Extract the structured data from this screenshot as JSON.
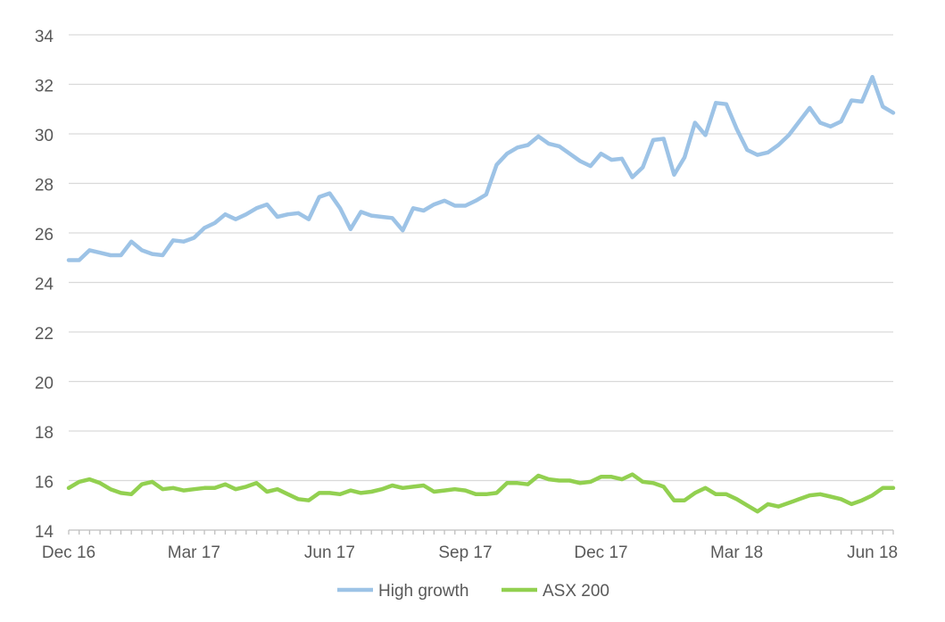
{
  "chart_data": {
    "type": "line",
    "title": "",
    "xlabel": "",
    "ylabel": "",
    "ylim": [
      14,
      34
    ],
    "y_ticks": [
      14,
      16,
      18,
      20,
      22,
      24,
      26,
      28,
      30,
      32,
      34
    ],
    "x_tick_labels": [
      "Dec 16",
      "Mar 17",
      "Jun 17",
      "Sep 17",
      "Dec 17",
      "Mar 18",
      "Jun 18"
    ],
    "x_tick_indices": [
      0,
      12,
      25,
      38,
      51,
      64,
      77
    ],
    "grid": "horizontal",
    "legend_position": "bottom-center",
    "series": [
      {
        "name": "High growth",
        "color": "#9DC3E6",
        "values": [
          24.9,
          24.9,
          25.3,
          25.2,
          25.1,
          25.1,
          25.65,
          25.3,
          25.15,
          25.1,
          25.7,
          25.65,
          25.8,
          26.2,
          26.4,
          26.75,
          26.55,
          26.75,
          27.0,
          27.15,
          26.65,
          26.75,
          26.8,
          26.55,
          27.45,
          27.6,
          27.0,
          26.15,
          26.85,
          26.7,
          26.65,
          26.6,
          26.1,
          27.0,
          26.9,
          27.15,
          27.3,
          27.1,
          27.1,
          27.3,
          27.55,
          28.75,
          29.2,
          29.45,
          29.55,
          29.9,
          29.6,
          29.5,
          29.2,
          28.9,
          28.7,
          29.2,
          28.95,
          29.0,
          28.25,
          28.65,
          29.75,
          29.8,
          28.35,
          29.05,
          30.45,
          29.95,
          31.25,
          31.2,
          30.2,
          29.35,
          29.15,
          29.25,
          29.55,
          29.95,
          30.5,
          31.05,
          30.45,
          30.3,
          30.5,
          31.35,
          31.3,
          32.3,
          31.1,
          30.85
        ]
      },
      {
        "name": "ASX 200",
        "color": "#92D050",
        "values": [
          15.7,
          15.95,
          16.05,
          15.9,
          15.65,
          15.5,
          15.45,
          15.85,
          15.95,
          15.65,
          15.7,
          15.6,
          15.65,
          15.7,
          15.7,
          15.85,
          15.65,
          15.75,
          15.9,
          15.55,
          15.65,
          15.45,
          15.25,
          15.2,
          15.5,
          15.5,
          15.45,
          15.6,
          15.5,
          15.55,
          15.65,
          15.8,
          15.7,
          15.75,
          15.8,
          15.55,
          15.6,
          15.65,
          15.6,
          15.45,
          15.45,
          15.5,
          15.9,
          15.9,
          15.85,
          16.2,
          16.05,
          16.0,
          16.0,
          15.9,
          15.95,
          16.15,
          16.15,
          16.05,
          16.25,
          15.95,
          15.9,
          15.75,
          15.2,
          15.2,
          15.5,
          15.7,
          15.45,
          15.45,
          15.25,
          15.0,
          14.75,
          15.05,
          14.95,
          15.1,
          15.25,
          15.4,
          15.45,
          15.35,
          15.25,
          15.05,
          15.2,
          15.4,
          15.7,
          15.7
        ]
      }
    ]
  }
}
